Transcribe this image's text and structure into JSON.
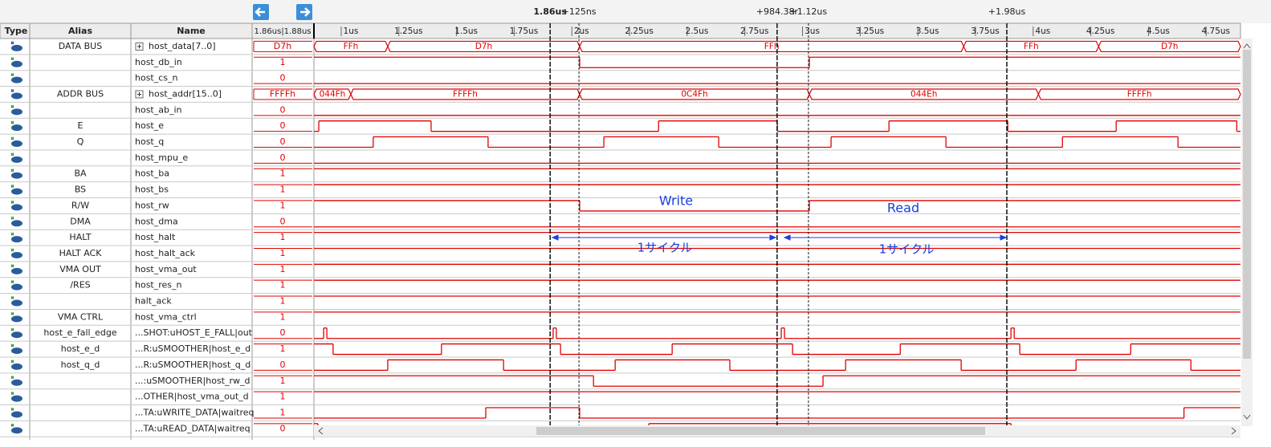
{
  "toolbar": {
    "cursors": [
      {
        "label": "1.86us",
        "time": 1.864
      },
      {
        "label": "+125ns",
        "time": 1.989
      },
      {
        "label": "+984.38r",
        "time": 2.848
      },
      {
        "label": "+1.12us",
        "time": 2.984
      },
      {
        "label": "+1.98us",
        "time": 3.844
      }
    ]
  },
  "columns": {
    "type": "Type",
    "alias": "Alias",
    "name": "Name",
    "value": "1.86us|1.88us"
  },
  "time_axis": {
    "xlim": [
      0.84,
      4.857
    ],
    "ticks": [
      {
        "value": 1,
        "label": "1us"
      },
      {
        "value": 1.25,
        "label": "1.25us"
      },
      {
        "value": 1.5,
        "label": "1.5us"
      },
      {
        "value": 1.75,
        "label": "1.75us"
      },
      {
        "value": 2,
        "label": "2us"
      },
      {
        "value": 2.25,
        "label": "2.25us"
      },
      {
        "value": 2.5,
        "label": "2.5us"
      },
      {
        "value": 2.75,
        "label": "2.75us"
      },
      {
        "value": 3,
        "label": "3us"
      },
      {
        "value": 3.25,
        "label": "3.25us"
      },
      {
        "value": 3.5,
        "label": "3.5us"
      },
      {
        "value": 3.75,
        "label": "3.75us"
      },
      {
        "value": 4,
        "label": "4us"
      },
      {
        "value": 4.25,
        "label": "4.25us"
      },
      {
        "value": 4.5,
        "label": "4.5us"
      },
      {
        "value": 4.75,
        "label": "4.75us"
      }
    ]
  },
  "signals": [
    {
      "alias": "DATA BUS",
      "name": "host_data[7..0]",
      "value": "D7h",
      "kind": "bus",
      "segments": [
        {
          "label": "FFh"
        },
        {
          "label": "D7h",
          "start": 1.16
        },
        {
          "label": "FFh",
          "start": 1.992
        },
        {
          "label": "FFh",
          "start": 3.657
        },
        {
          "label": "D7h",
          "start": 4.242
        }
      ]
    },
    {
      "name": "host_db_in",
      "value": "1",
      "kind": "bit",
      "initial": 1,
      "edges": [
        1.992,
        2.988
      ]
    },
    {
      "name": "host_cs_n",
      "value": "0",
      "kind": "bit",
      "initial": 0,
      "edges": []
    },
    {
      "alias": "ADDR BUS",
      "name": "host_addr[15..0]",
      "value": "FFFFh",
      "kind": "bus",
      "segments": [
        {
          "label": "044Fh"
        },
        {
          "label": "FFFFh",
          "start": 1.0
        },
        {
          "label": "0C4Fh",
          "start": 1.992
        },
        {
          "label": "044Eh",
          "start": 2.988
        },
        {
          "label": "FFFFh",
          "start": 3.981
        }
      ]
    },
    {
      "name": "host_ab_in",
      "value": "0",
      "kind": "bit",
      "initial": 0,
      "edges": []
    },
    {
      "alias": "E",
      "name": "host_e",
      "value": "0",
      "kind": "bit",
      "initial": 0,
      "edges": [
        0.861,
        1.348,
        2.334,
        2.849,
        3.333,
        3.848,
        4.318,
        4.841
      ]
    },
    {
      "alias": "Q",
      "name": "host_q",
      "value": "0",
      "kind": "bit",
      "initial": 0,
      "edges": [
        1.097,
        1.595,
        2.097,
        2.595,
        3.082,
        3.58,
        4.085,
        4.586
      ]
    },
    {
      "name": "host_mpu_e",
      "value": "0",
      "kind": "bit",
      "initial": 0,
      "edges": []
    },
    {
      "alias": "BA",
      "name": "host_ba",
      "value": "1",
      "kind": "bit",
      "initial": 1,
      "edges": []
    },
    {
      "alias": "BS",
      "name": "host_bs",
      "value": "1",
      "kind": "bit",
      "initial": 1,
      "edges": []
    },
    {
      "alias": "R/W",
      "name": "host_rw",
      "value": "1",
      "kind": "bit",
      "initial": 1,
      "edges": [
        1.992,
        2.988
      ]
    },
    {
      "alias": "DMA",
      "name": "host_dma",
      "value": "0",
      "kind": "bit",
      "initial": 0,
      "edges": []
    },
    {
      "alias": "HALT",
      "name": "host_halt",
      "value": "1",
      "kind": "bit",
      "initial": 1,
      "edges": []
    },
    {
      "alias": "HALT ACK",
      "name": "host_halt_ack",
      "value": "1",
      "kind": "bit",
      "initial": 1,
      "edges": []
    },
    {
      "alias": "VMA OUT",
      "name": "host_vma_out",
      "value": "1",
      "kind": "bit",
      "initial": 1,
      "edges": []
    },
    {
      "alias": "/RES",
      "name": "host_res_n",
      "value": "1",
      "kind": "bit",
      "initial": 1,
      "edges": []
    },
    {
      "name": "halt_ack",
      "value": "1",
      "kind": "bit",
      "initial": 1,
      "edges": []
    },
    {
      "alias": "VMA CTRL",
      "name": "host_vma_ctrl",
      "value": "1",
      "kind": "bit",
      "initial": 1,
      "edges": []
    },
    {
      "alias": "host_e_fall_edge",
      "name": "...SHOT:uHOST_E_FALL|out",
      "value": "0",
      "kind": "bit",
      "initial": 0,
      "edges": [
        0.882,
        0.896,
        1.877,
        1.891,
        2.866,
        2.88,
        3.862,
        3.876
      ]
    },
    {
      "alias": "host_e_d",
      "name": "...R:uSMOOTHER|host_e_d",
      "value": "1",
      "kind": "bit",
      "initial": 1,
      "edges": [
        0.923,
        1.393,
        1.909,
        2.393,
        2.915,
        3.382,
        3.9,
        4.381
      ]
    },
    {
      "alias": "host_q_d",
      "name": "...R:uSMOOTHER|host_q_d",
      "value": "0",
      "kind": "bit",
      "initial": 0,
      "edges": [
        1.16,
        1.662,
        2.146,
        2.643,
        3.145,
        3.646,
        4.144,
        4.642
      ]
    },
    {
      "name": "...:uSMOOTHER|host_rw_d",
      "value": "1",
      "kind": "bit",
      "initial": 1,
      "edges": [
        2.052,
        3.047
      ]
    },
    {
      "name": "...OTHER|host_vma_out_d",
      "value": "1",
      "kind": "bit",
      "initial": 1,
      "edges": []
    },
    {
      "name": "...TA:uWRITE_DATA|waitreq",
      "value": "1",
      "kind": "bit",
      "initial": 0,
      "edges": [
        1.585,
        1.992,
        4.612
      ]
    },
    {
      "name": "...TA:uREAD_DATA|waitreq",
      "value": "0",
      "kind": "bit",
      "initial": 1,
      "edges": [
        0.857,
        2.292,
        3.862
      ]
    }
  ],
  "annotations": {
    "write": "Write",
    "read": "Read",
    "cycle_1": "1サイクル",
    "cycle_2": "1サイクル"
  }
}
